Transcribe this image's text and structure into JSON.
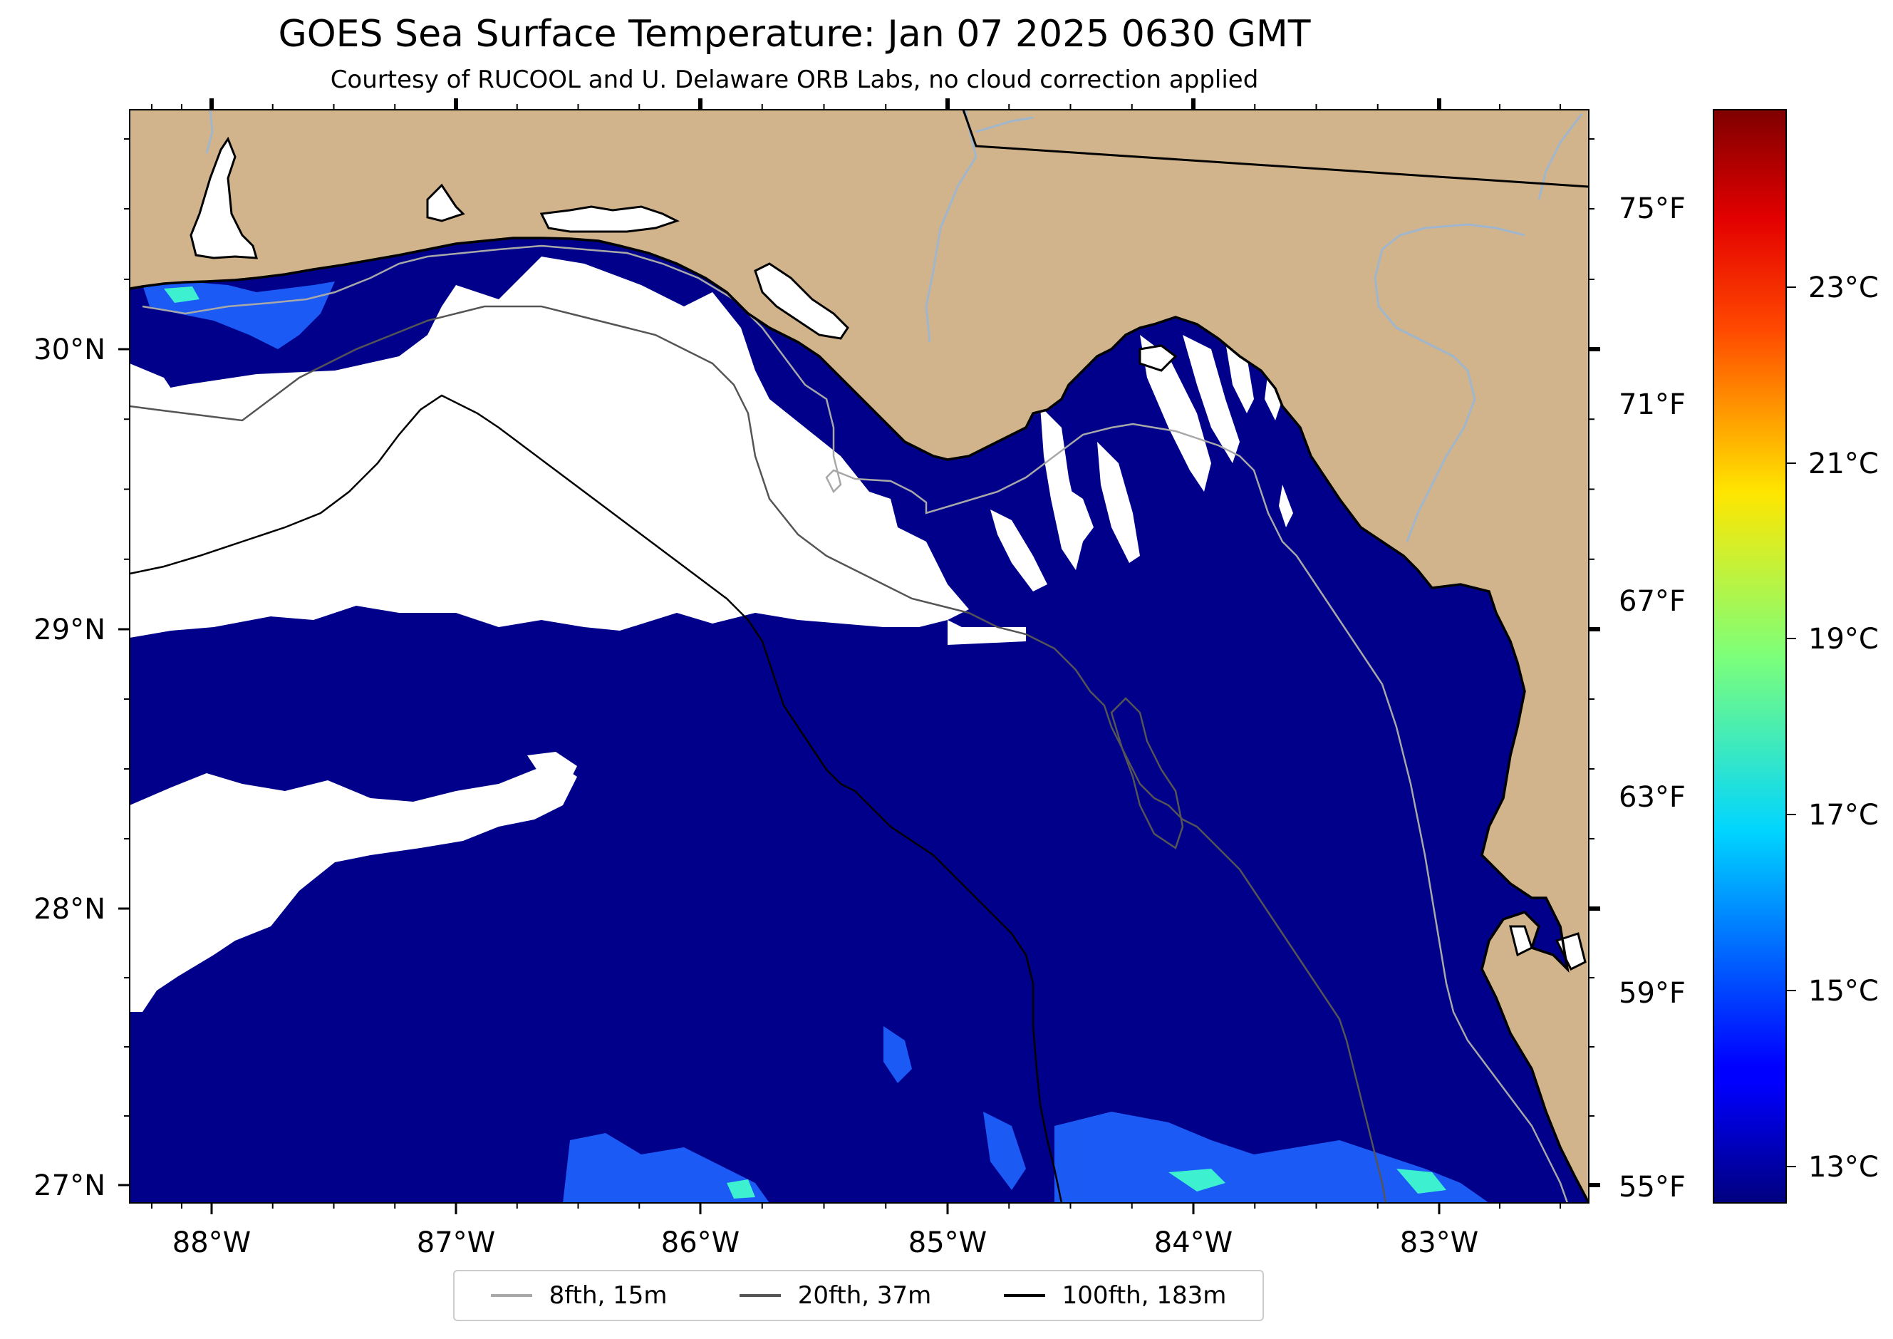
{
  "title": "GOES Sea Surface Temperature: Jan 07 2025 0630 GMT",
  "subtitle": "Courtesy of RUCOOL and U. Delaware ORB Labs, no cloud correction applied",
  "map": {
    "land_color": "#d2b48c",
    "no_data_color": "#ffffff",
    "ocean_base_color": "#00008b",
    "longitude_labels": [
      "88°W",
      "87°W",
      "86°W",
      "85°W",
      "84°W",
      "83°W"
    ],
    "latitude_labels": [
      "30°N",
      "29°N",
      "28°N",
      "27°N"
    ]
  },
  "colorbar": {
    "colormap": "jet",
    "fahrenheit_labels": [
      "75°F",
      "71°F",
      "67°F",
      "63°F",
      "59°F",
      "55°F"
    ],
    "celsius_labels": [
      "23°C",
      "21°C",
      "19°C",
      "17°C",
      "15°C",
      "13°C"
    ]
  },
  "legend": [
    {
      "label": "8fth, 15m",
      "color": "#a8a8a8"
    },
    {
      "label": "20fth, 37m",
      "color": "#555555"
    },
    {
      "label": "100fth, 183m",
      "color": "#000000"
    }
  ]
}
